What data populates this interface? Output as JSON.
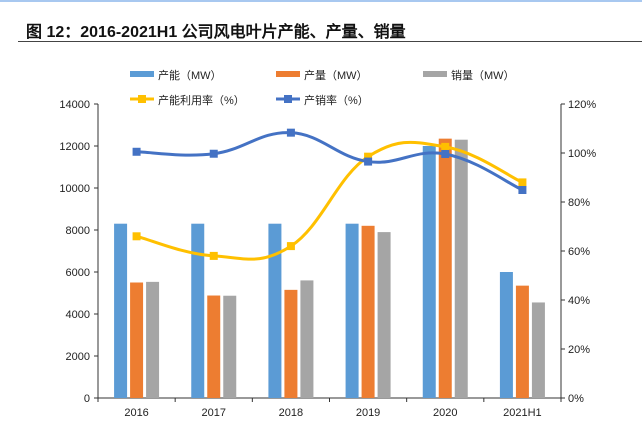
{
  "title": "图 12：2016-2021H1 公司风电叶片产能、产量、销量",
  "chart_data": {
    "type": "bar+line",
    "categories": [
      "2016",
      "2017",
      "2018",
      "2019",
      "2020",
      "2021H1"
    ],
    "bar_series": [
      {
        "name": "产能（MW）",
        "color": "#5b9bd5",
        "values": [
          8300,
          8300,
          8300,
          8300,
          12000,
          6000
        ]
      },
      {
        "name": "产量（MW）",
        "color": "#ed7d31",
        "values": [
          5500,
          4880,
          5150,
          8200,
          12350,
          5350
        ]
      },
      {
        "name": "销量（MW）",
        "color": "#a5a5a5",
        "values": [
          5530,
          4870,
          5600,
          7900,
          12300,
          4550
        ]
      }
    ],
    "line_series": [
      {
        "name": "产能利用率（%）",
        "color": "#ffc000",
        "values": [
          66,
          58,
          62,
          98.5,
          102.5,
          88
        ]
      },
      {
        "name": "产销率（%）",
        "color": "#4472c4",
        "values": [
          100.5,
          99.7,
          108.3,
          96.5,
          99.6,
          84.9
        ]
      }
    ],
    "y_left": {
      "min": 0,
      "max": 14000,
      "ticks": [
        "0",
        "2000",
        "4000",
        "6000",
        "8000",
        "10000",
        "12000",
        "14000"
      ]
    },
    "y_right": {
      "min": 0,
      "max": 120,
      "ticks": [
        "0%",
        "20%",
        "40%",
        "60%",
        "80%",
        "100%",
        "120%"
      ]
    },
    "legend_position": "top",
    "grid": false
  }
}
